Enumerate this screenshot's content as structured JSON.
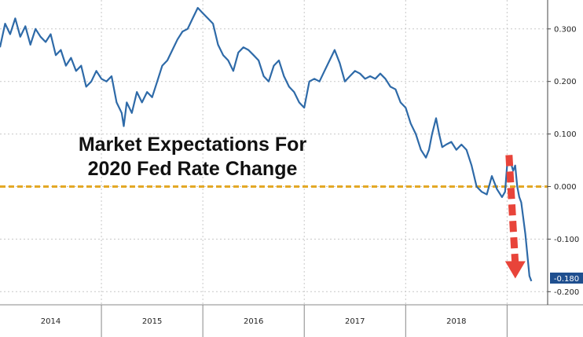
{
  "chart_data": {
    "type": "line",
    "title_lines": [
      "Market Expectations For",
      "2020 Fed Rate Change"
    ],
    "xlabel": "",
    "ylabel": "",
    "x_tick_labels": [
      "2014",
      "2015",
      "2016",
      "2017",
      "2018"
    ],
    "y_tick_labels": [
      "0.300",
      "0.200",
      "0.100",
      "0.000",
      "-0.100",
      "-0.200"
    ],
    "y_ticks": [
      0.3,
      0.2,
      0.1,
      0.0,
      -0.1,
      -0.2
    ],
    "ylim": [
      -0.225,
      0.355
    ],
    "grid": true,
    "last_value_label": "-0.180",
    "reference_line": {
      "y": 0.0,
      "color": "#e3a826",
      "style": "dashed"
    },
    "arrow": {
      "from": [
        2018.55,
        0.06
      ],
      "to": [
        2018.55,
        -0.175
      ],
      "color": "#e8443a"
    },
    "series": [
      {
        "color": "#2e6aa8",
        "points": [
          [
            2013.5,
            0.265
          ],
          [
            2013.55,
            0.31
          ],
          [
            2013.6,
            0.29
          ],
          [
            2013.65,
            0.32
          ],
          [
            2013.7,
            0.285
          ],
          [
            2013.75,
            0.305
          ],
          [
            2013.8,
            0.27
          ],
          [
            2013.85,
            0.3
          ],
          [
            2013.9,
            0.285
          ],
          [
            2013.95,
            0.275
          ],
          [
            2014.0,
            0.29
          ],
          [
            2014.05,
            0.25
          ],
          [
            2014.1,
            0.26
          ],
          [
            2014.15,
            0.23
          ],
          [
            2014.2,
            0.245
          ],
          [
            2014.25,
            0.22
          ],
          [
            2014.3,
            0.23
          ],
          [
            2014.35,
            0.19
          ],
          [
            2014.4,
            0.2
          ],
          [
            2014.45,
            0.22
          ],
          [
            2014.5,
            0.205
          ],
          [
            2014.55,
            0.2
          ],
          [
            2014.6,
            0.21
          ],
          [
            2014.65,
            0.16
          ],
          [
            2014.7,
            0.14
          ],
          [
            2014.72,
            0.115
          ],
          [
            2014.75,
            0.16
          ],
          [
            2014.8,
            0.14
          ],
          [
            2014.85,
            0.18
          ],
          [
            2014.9,
            0.16
          ],
          [
            2014.95,
            0.18
          ],
          [
            2015.0,
            0.17
          ],
          [
            2015.05,
            0.2
          ],
          [
            2015.1,
            0.23
          ],
          [
            2015.15,
            0.24
          ],
          [
            2015.2,
            0.26
          ],
          [
            2015.25,
            0.28
          ],
          [
            2015.3,
            0.295
          ],
          [
            2015.35,
            0.3
          ],
          [
            2015.4,
            0.32
          ],
          [
            2015.45,
            0.34
          ],
          [
            2015.5,
            0.33
          ],
          [
            2015.55,
            0.32
          ],
          [
            2015.6,
            0.31
          ],
          [
            2015.65,
            0.27
          ],
          [
            2015.7,
            0.25
          ],
          [
            2015.75,
            0.24
          ],
          [
            2015.8,
            0.22
          ],
          [
            2015.85,
            0.255
          ],
          [
            2015.9,
            0.265
          ],
          [
            2015.95,
            0.26
          ],
          [
            2016.0,
            0.25
          ],
          [
            2016.05,
            0.24
          ],
          [
            2016.1,
            0.21
          ],
          [
            2016.15,
            0.2
          ],
          [
            2016.2,
            0.23
          ],
          [
            2016.25,
            0.24
          ],
          [
            2016.3,
            0.21
          ],
          [
            2016.35,
            0.19
          ],
          [
            2016.4,
            0.18
          ],
          [
            2016.45,
            0.16
          ],
          [
            2016.5,
            0.15
          ],
          [
            2016.55,
            0.2
          ],
          [
            2016.6,
            0.205
          ],
          [
            2016.65,
            0.2
          ],
          [
            2016.7,
            0.22
          ],
          [
            2016.75,
            0.24
          ],
          [
            2016.8,
            0.26
          ],
          [
            2016.85,
            0.235
          ],
          [
            2016.9,
            0.2
          ],
          [
            2016.95,
            0.21
          ],
          [
            2017.0,
            0.22
          ],
          [
            2017.05,
            0.215
          ],
          [
            2017.1,
            0.205
          ],
          [
            2017.15,
            0.21
          ],
          [
            2017.2,
            0.205
          ],
          [
            2017.25,
            0.215
          ],
          [
            2017.3,
            0.205
          ],
          [
            2017.35,
            0.19
          ],
          [
            2017.4,
            0.185
          ],
          [
            2017.45,
            0.16
          ],
          [
            2017.5,
            0.15
          ],
          [
            2017.55,
            0.12
          ],
          [
            2017.6,
            0.1
          ],
          [
            2017.65,
            0.07
          ],
          [
            2017.7,
            0.055
          ],
          [
            2017.73,
            0.07
          ],
          [
            2017.76,
            0.1
          ],
          [
            2017.8,
            0.13
          ],
          [
            2017.83,
            0.1
          ],
          [
            2017.86,
            0.075
          ],
          [
            2017.9,
            0.08
          ],
          [
            2017.95,
            0.085
          ],
          [
            2018.0,
            0.07
          ],
          [
            2018.05,
            0.08
          ],
          [
            2018.1,
            0.07
          ],
          [
            2018.15,
            0.04
          ],
          [
            2018.2,
            0.0
          ],
          [
            2018.25,
            -0.01
          ],
          [
            2018.3,
            -0.015
          ],
          [
            2018.35,
            0.02
          ],
          [
            2018.4,
            -0.005
          ],
          [
            2018.45,
            -0.02
          ],
          [
            2018.48,
            -0.01
          ],
          [
            2018.5,
            0.04
          ],
          [
            2018.53,
            0.05
          ],
          [
            2018.56,
            0.03
          ],
          [
            2018.58,
            0.04
          ],
          [
            2018.6,
            0.0
          ],
          [
            2018.62,
            -0.02
          ],
          [
            2018.64,
            -0.03
          ],
          [
            2018.66,
            -0.06
          ],
          [
            2018.68,
            -0.09
          ],
          [
            2018.7,
            -0.13
          ],
          [
            2018.72,
            -0.17
          ],
          [
            2018.74,
            -0.18
          ]
        ]
      }
    ]
  }
}
